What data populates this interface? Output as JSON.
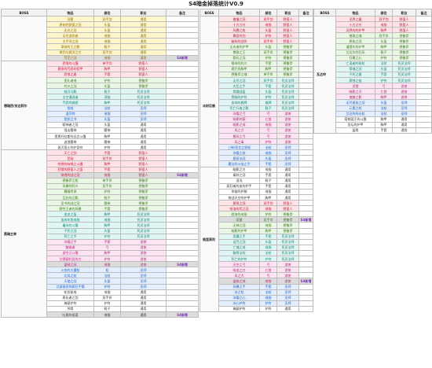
{
  "title": "S4暗金掉落统计V0.9",
  "headers": {
    "boss": "BOSS",
    "item": "物品",
    "part": "部位",
    "job": "职业",
    "note": "备注"
  },
  "tables": [
    {
      "groups": [
        {
          "boss": "",
          "rows": [
            [
              "冠冕",
              "双手剑",
              "通用",
              "",
              "gold"
            ],
            [
              "原始的野蛮之冠",
              "头盔",
              "通用",
              "",
              "gold"
            ],
            [
              "无光之冠",
              "头盔",
              "通用",
              "",
              "gold"
            ],
            [
              "无尽追踪者",
              "戒指",
              "通用",
              "",
              "gold"
            ],
            [
              "太平洋之冠",
              "戒指",
              "通用",
              "",
              "gold"
            ],
            [
              "翠翁的王之靴",
              "鞋子",
              "通用",
              "",
              "gold"
            ],
            [
              "审判与裁决之刃",
              "双手剑",
              "通用",
              "",
              "gold"
            ],
            [
              "荒芜之冠",
              "戒指",
              "通用",
              "S4新增",
              "gold",
              1
            ]
          ]
        },
        {
          "boss": "德瑞西/安达莉尔",
          "rows": [
            [
              "怨恨的斗篷",
              "单手剑",
              "野蛮人",
              "",
              "red"
            ],
            [
              "黄泉的咒怨的铠甲",
              "胸甲",
              "野蛮人",
              "",
              "red"
            ],
            [
              "怨恨之盾",
              "手套",
              "野蛮人",
              "",
              "red"
            ],
            [
              "圣礼者戒",
              "护符",
              "德鲁伊",
              "",
              "green"
            ],
            [
              "利爪之冠",
              "头盔",
              "德鲁伊",
              "",
              "green"
            ],
            [
              "暗月马靴",
              "鞋子",
              "死灵法师",
              "",
              "teal"
            ],
            [
              "太空漫游者",
              "项链",
              "死灵法师",
              "",
              "teal"
            ],
            [
              "咒怨的枷锁",
              "胸甲",
              "死灵法师",
              "",
              "teal"
            ],
            [
              "指前",
              "法杖",
              "巫师",
              "",
              "blue"
            ],
            [
              "温莎特",
              "戒指",
              "巫师",
              "",
              "blue"
            ],
            [
              "宽恕之书",
              "头盔",
              "巫师",
              "",
              "blue"
            ],
            [
              "赋神者之冠",
              "头盔",
              "通用",
              "",
              "plain"
            ],
            [
              "强击腰带",
              "腰带",
              "通用",
              "",
              "plain"
            ],
            [
              "提奥托拉斯的远古斗篷",
              "胸甲",
              "通用",
              "",
              "plain"
            ],
            [
              "波浪腰带",
              "腰带",
              "通用",
              "",
              "plain"
            ],
            [
              "毁灭国土的护身符",
              "护符",
              "通用",
              "",
              "plain"
            ]
          ]
        },
        {
          "boss": "黑暗主宰",
          "rows": [
            [
              "灭亡之剑",
              "手套",
              "野蛮人",
              "",
              "red"
            ],
            [
              "悲恸",
              "双手斧",
              "野蛮人",
              "",
              "red"
            ],
            [
              "哈德的咏唱之斗篷",
              "胸甲",
              "野蛮人",
              "",
              "red"
            ],
            [
              "狩猎的野蛮人之盔",
              "手套",
              "野蛮人",
              "",
              "red"
            ],
            [
              "穿透的战之冠",
              "戒指",
              "野蛮人",
              "S4新增",
              "red",
              1
            ],
            [
              "德鲁伊之枪",
              "单手斧",
              "德鲁伊",
              "",
              "green"
            ],
            [
              "风暴的利爪",
              "双手斧",
              "德鲁伊",
              "",
              "green"
            ],
            [
              "暴躁传承",
              "护符",
              "德鲁伊",
              "",
              "green"
            ],
            [
              "瓦拉的之靴",
              "鞋子",
              "德鲁伊",
              "",
              "green"
            ],
            [
              "圣书的战之冠",
              "腰带",
              "德鲁伊",
              "",
              "green"
            ],
            [
              "野性王者的风暴",
              "手套",
              "德鲁伊",
              "",
              "green"
            ],
            [
              "血龙之盔",
              "胸甲",
              "死灵法师",
              "",
              "teal"
            ],
            [
              "血肉牢笼戒指",
              "戒指",
              "死灵法师",
              "",
              "teal"
            ],
            [
              "屠夫的斗篷",
              "胸甲",
              "死灵法师",
              "",
              "teal"
            ],
            [
              "不死之冠",
              "头盔",
              "死灵法师",
              "",
              "teal"
            ],
            [
              "死亡之手",
              "护符",
              "死灵法师",
              "",
              "teal"
            ],
            [
              "冰霜之手",
              "手套",
              "游侠",
              "",
              "pink"
            ],
            [
              "魅惑者",
              "弓",
              "游侠",
              "",
              "pink"
            ],
            [
              "虚空之斗篷",
              "胸甲",
              "游侠",
              "",
              "pink"
            ],
            [
              "艾德赛利亚的力",
              "护符",
              "游侠",
              "",
              "pink"
            ],
            [
              "盗贼之冠",
              "戒指",
              "游侠",
              "S4新增",
              "pink",
              1
            ],
            [
              "火焰的大魔杖",
              "杖",
              "巫师",
              "",
              "blue"
            ],
            [
              "北风之杖",
              "法杖",
              "巫师",
              "",
              "blue"
            ],
            [
              "天使之冠",
              "头盔",
              "巫师",
              "",
              "blue"
            ],
            [
              "艾瑟丽亚的疯狂手镯",
              "护符",
              "巫师",
              "",
              "blue"
            ],
            [
              "蛇形秘戒",
              "戒指",
              "通用",
              "",
              "plain"
            ],
            [
              "腐化者之剑",
              "双手斧",
              "通用",
              "",
              "plain"
            ],
            [
              "梅瑟护符",
              "护符",
              "通用",
              "",
              "plain"
            ],
            [
              "颅骨",
              "鞋子",
              "通用",
              "",
              "plain"
            ],
            [
              "吐息的低语",
              "戒指",
              "通用",
              "S4新增",
              "plain",
              1
            ]
          ]
        }
      ]
    },
    {
      "groups": [
        {
          "boss": "",
          "rows": [
            [
              "傲慢之冠",
              "双手剑",
              "野蛮人",
              "",
              "red"
            ],
            [
              "十方刀刃",
              "戒指",
              "野蛮人",
              "",
              "red"
            ],
            [
              "风暴之枪",
              "头盔",
              "野蛮人",
              "",
              "red"
            ],
            [
              "暴君的剑",
              "护符",
              "野蛮人",
              "",
              "red"
            ],
            [
              "破碎的战斧",
              "双手斧",
              "野蛮人",
              "",
              "red"
            ]
          ]
        },
        {
          "boss": "冰封巨兽",
          "rows": [
            [
              "无名者的护甲",
              "头盔",
              "德鲁伊",
              "",
              "green"
            ],
            [
              "兽群之王",
              "双手斧",
              "德鲁伊",
              "",
              "green"
            ],
            [
              "颤抖之冠",
              "护符",
              "德鲁伊",
              "",
              "green"
            ],
            [
              "格林的利爪",
              "手套",
              "德鲁伊",
              "",
              "green"
            ],
            [
              "腐烂的胸甲",
              "胸甲",
              "德鲁伊",
              "",
              "green"
            ],
            [
              "德鲁伊之魂",
              "单手斧",
              "德鲁伊",
              "",
              "green"
            ],
            [
              "无尽之冠",
              "双手剑",
              "死灵法师",
              "",
              "teal"
            ],
            [
              "灾厄之手",
              "手套",
              "死灵法师",
              "",
              "teal"
            ],
            [
              "骨髓战盔",
              "头盔",
              "死灵法师",
              "",
              "teal"
            ],
            [
              "黑暗的护符",
              "护符",
              "死灵法师",
              "",
              "teal"
            ],
            [
              "血肉的盾牌",
              "盾牌",
              "死灵法师",
              "",
              "teal"
            ],
            [
              "死亡行者之靴",
              "鞋子",
              "死灵法师",
              "",
              "teal"
            ],
            [
              "冰霜之弓",
              "弓",
              "游侠",
              "",
              "pink"
            ],
            [
              "暗影刺客",
              "匕首",
              "游侠",
              "",
              "pink"
            ],
            [
              "暗影之戒",
              "戒指",
              "游侠",
              "",
              "pink"
            ],
            [
              "风之力",
              "弓",
              "游侠",
              "",
              "pink"
            ],
            [
              "暴风之弓",
              "弓",
              "游侠",
              "",
              "pink"
            ],
            [
              "风之毒",
              "护符",
              "游侠",
              "",
              "pink"
            ],
            [
              "三神/宣言之权杖",
              "法杖",
              "巫师",
              "",
              "blue"
            ],
            [
              "冰霜之核",
              "戒指",
              "巫师",
              "",
              "blue"
            ],
            [
              "星辰法冠",
              "头盔",
              "巫师",
              "",
              "blue"
            ],
            [
              "魔法的火焰之手",
              "手套",
              "巫师",
              "",
              "blue"
            ]
          ]
        },
        {
          "boss": "格里高利",
          "rows": [
            [
              "暗影之刃",
              "戒指",
              "通用",
              "",
              "plain"
            ],
            [
              "秦秋之冠",
              "手套",
              "通用",
              "",
              "plain"
            ],
            [
              "混沌",
              "鞋子",
              "通用",
              "",
              "plain"
            ],
            [
              "疯狂者的血的护手",
              "手套",
              "通用",
              "",
              "plain"
            ],
            [
              "李维的护腕",
              "戒指",
              "通用",
              "",
              "plain"
            ],
            [
              "铁战天空的护甲",
              "胸甲",
              "通用",
              "",
              "plain"
            ],
            [
              "黄泉之冠",
              "双手剑",
              "野蛮人",
              "",
              "red"
            ],
            [
              "哈洛的死之冠",
              "戒指",
              "野蛮人",
              "",
              "red"
            ],
            [
              "欧洛的戒指",
              "护符",
              "德鲁伊",
              "",
              "green"
            ],
            [
              "双雷",
              "双手斧",
              "德鲁伊",
              "S4新增",
              "green",
              1
            ],
            [
              "无神之冠",
              "戒指",
              "德鲁伊",
              "",
              "green"
            ],
            [
              "暗影的护甲",
              "胸甲",
              "德鲁伊",
              "",
              "green"
            ],
            [
              "恶魔之手",
              "手套",
              "死灵法师",
              "",
              "teal"
            ],
            [
              "诅咒之冠",
              "头盔",
              "死灵法师",
              "",
              "teal"
            ],
            [
              "亡魂之戒",
              "戒指",
              "死灵法师",
              "",
              "teal"
            ],
            [
              "骸骨法杖",
              "法杖",
              "死灵法师",
              "",
              "teal"
            ],
            [
              "死亡的护符",
              "护符",
              "死灵法师",
              "",
              "teal"
            ],
            [
              "天空之弓",
              "弓",
              "游侠",
              "",
              "pink"
            ],
            [
              "吸血之刃",
              "匕首",
              "游侠",
              "",
              "pink"
            ],
            [
              "风之力",
              "弓",
              "游侠",
              "",
              "pink"
            ],
            [
              "盗贼之戒",
              "戒指",
              "游侠",
              "S4新增",
              "pink",
              1
            ],
            [
              "风暴之手",
              "手套",
              "巫师",
              "",
              "blue"
            ],
            [
              "冰之杖",
              "法杖",
              "巫师",
              "",
              "blue"
            ],
            [
              "冰霜之心",
              "戒指",
              "巫师",
              "",
              "blue"
            ],
            [
              "冰心护符",
              "护符",
              "巫师",
              "",
              "blue"
            ],
            [
              "梅瑟护符",
              "护符",
              "通用",
              "",
              "plain"
            ]
          ]
        }
      ]
    },
    {
      "groups": [
        {
          "boss": "瓦达申",
          "rows": [
            [
              "灵界之握",
              "双手剑",
              "野蛮人",
              "",
              "red"
            ],
            [
              "十方刀刃",
              "戒指",
              "野蛮人",
              "",
              "red"
            ],
            [
              "灵界的的护甲",
              "胸甲",
              "野蛮人",
              "",
              "red"
            ],
            [
              "兽群之魂",
              "双手斧",
              "德鲁伊",
              "",
              "green"
            ],
            [
              "原始之冠",
              "头盔",
              "德鲁伊",
              "",
              "green"
            ],
            [
              "潘提尔的护甲",
              "胸甲",
              "德鲁伊",
              "",
              "green"
            ],
            [
              "艾达尔的狂风",
              "鞋子",
              "德鲁伊",
              "",
              "green"
            ],
            [
              "狂暴之心",
              "护符",
              "德鲁伊",
              "",
              "green"
            ],
            [
              "亡语者的权杖",
              "法杖",
              "死灵法师",
              "",
              "teal"
            ],
            [
              "骨魂之冠",
              "头盔",
              "死灵法师",
              "",
              "teal"
            ],
            [
              "不死之握",
              "手套",
              "死灵法师",
              "",
              "teal"
            ],
            [
              "腐蚀之链",
              "护符",
              "死灵法师",
              "",
              "teal"
            ],
            [
              "灵猎",
              "弓",
              "游侠",
              "",
              "pink"
            ],
            [
              "暗影之牙",
              "匕首",
              "游侠",
              "",
              "pink"
            ],
            [
              "鬼魅之影",
              "胸甲",
              "游侠",
              "",
              "pink"
            ],
            [
              "无尽星辰之冠",
              "头盔",
              "巫师",
              "",
              "blue"
            ],
            [
              "元素之杖",
              "法杖",
              "巫师",
              "",
              "blue"
            ],
            [
              "艾达的的长杖",
              "法杖",
              "巫师",
              "",
              "blue"
            ],
            [
              "塔勒国王的斗篷",
              "胸甲",
              "通用",
              "",
              "plain"
            ],
            [
              "圣坛的护甲",
              "胸甲",
              "通用",
              "",
              "plain"
            ],
            [
              "晶骨",
              "手套",
              "通用",
              "",
              "plain"
            ]
          ]
        }
      ]
    }
  ]
}
